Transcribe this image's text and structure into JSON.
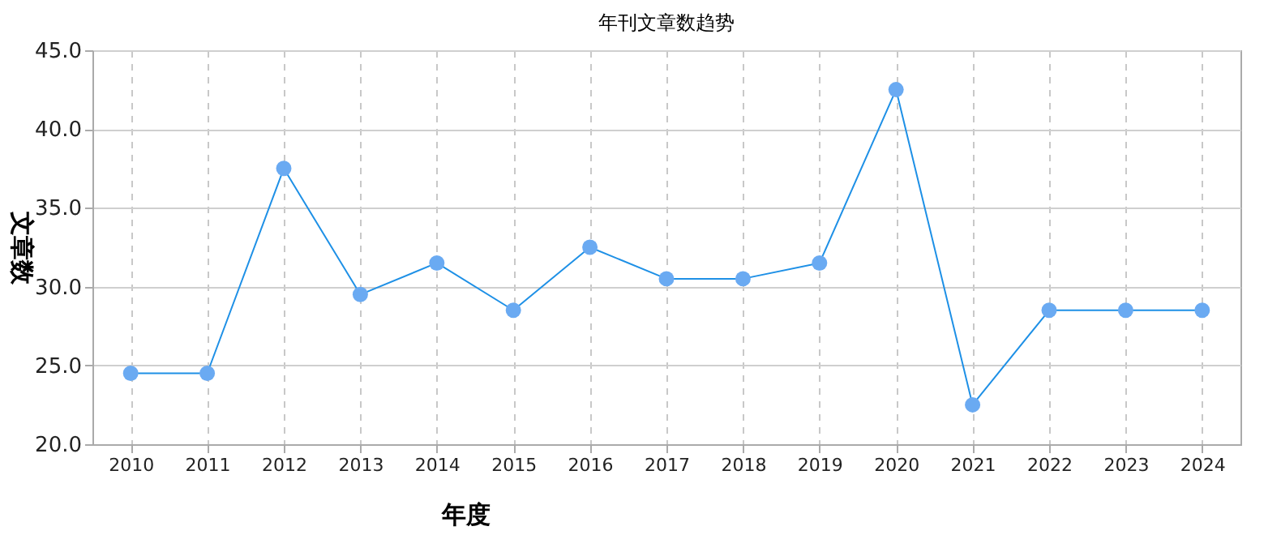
{
  "chart_data": {
    "type": "line",
    "title": "年刊文章数趋势",
    "xlabel": "年度",
    "ylabel": "文章数",
    "categories": [
      "2010",
      "2011",
      "2012",
      "2013",
      "2014",
      "2015",
      "2016",
      "2017",
      "2018",
      "2019",
      "2020",
      "2021",
      "2022",
      "2023",
      "2024"
    ],
    "series": [
      {
        "color": "#1e90e6",
        "values": [
          24.5,
          24.5,
          37.5,
          29.5,
          31.5,
          28.5,
          32.5,
          30.5,
          30.5,
          31.5,
          42.5,
          22.5,
          28.5,
          28.5,
          28.5
        ]
      }
    ],
    "ylim": [
      20,
      45
    ],
    "yticks": [
      {
        "value": 20,
        "label": "20.0"
      },
      {
        "value": 25,
        "label": "25.0"
      },
      {
        "value": 30,
        "label": "30.0"
      },
      {
        "value": 35,
        "label": "35.0"
      },
      {
        "value": 40,
        "label": "40.0"
      },
      {
        "value": 45,
        "label": "45.0"
      }
    ],
    "grid": true,
    "marker": "circle",
    "line_style": "solid"
  }
}
